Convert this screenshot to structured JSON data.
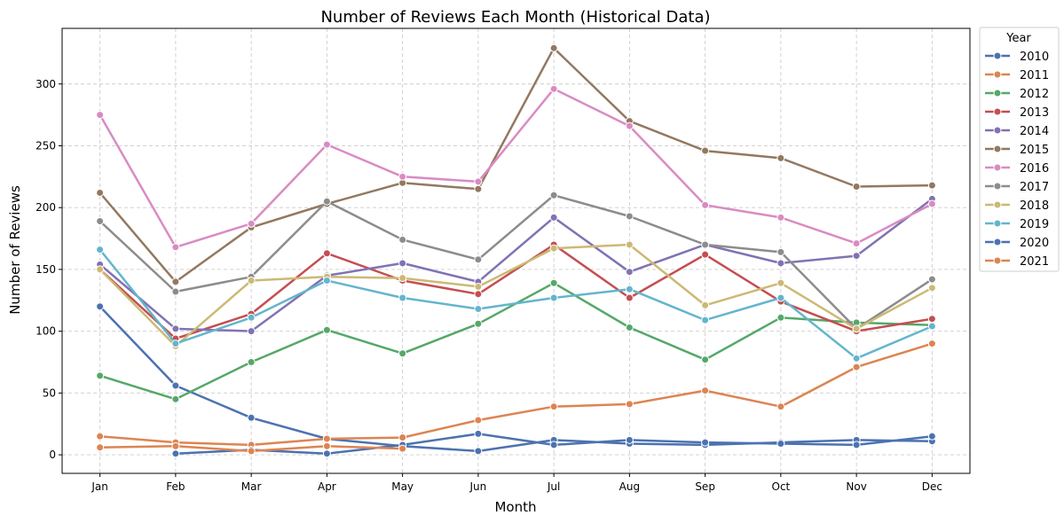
{
  "chart_data": {
    "type": "line",
    "title": "Number of Reviews Each Month (Historical Data)",
    "xlabel": "Month",
    "ylabel": "Number of Reviews",
    "categories": [
      "Jan",
      "Feb",
      "Mar",
      "Apr",
      "May",
      "Jun",
      "Jul",
      "Aug",
      "Sep",
      "Oct",
      "Nov",
      "Dec"
    ],
    "ylim": [
      -15,
      345
    ],
    "yticks": [
      0,
      50,
      100,
      150,
      200,
      250,
      300
    ],
    "grid": true,
    "legend_title": "Year",
    "legend_position": "outside-right",
    "series": [
      {
        "name": "2010",
        "color": "#4c72b0",
        "values": [
          120,
          56,
          30,
          13,
          7,
          3,
          12,
          9,
          8,
          10,
          12,
          11
        ]
      },
      {
        "name": "2011",
        "color": "#dd8452",
        "values": [
          15,
          10,
          8,
          13,
          14,
          28,
          39,
          41,
          52,
          39,
          71,
          90
        ]
      },
      {
        "name": "2012",
        "color": "#55a868",
        "values": [
          64,
          45,
          75,
          101,
          82,
          106,
          139,
          103,
          77,
          111,
          107,
          105
        ]
      },
      {
        "name": "2013",
        "color": "#c44e52",
        "values": [
          150,
          94,
          114,
          163,
          141,
          130,
          170,
          127,
          162,
          124,
          100,
          110
        ]
      },
      {
        "name": "2014",
        "color": "#8172b3",
        "values": [
          154,
          102,
          100,
          145,
          155,
          140,
          192,
          148,
          170,
          155,
          161,
          207
        ]
      },
      {
        "name": "2015",
        "color": "#937860",
        "values": [
          212,
          140,
          184,
          203,
          220,
          215,
          329,
          270,
          246,
          240,
          217,
          218
        ]
      },
      {
        "name": "2016",
        "color": "#da8bc3",
        "values": [
          275,
          168,
          187,
          251,
          225,
          221,
          296,
          266,
          202,
          192,
          171,
          203
        ]
      },
      {
        "name": "2017",
        "color": "#8c8c8c",
        "values": [
          189,
          132,
          144,
          205,
          174,
          158,
          210,
          193,
          170,
          164,
          102,
          142
        ]
      },
      {
        "name": "2018",
        "color": "#ccb974",
        "values": [
          150,
          88,
          141,
          144,
          143,
          136,
          167,
          170,
          121,
          139,
          102,
          135
        ]
      },
      {
        "name": "2019",
        "color": "#64b5cd",
        "values": [
          166,
          90,
          111,
          141,
          127,
          118,
          127,
          134,
          109,
          127,
          78,
          104
        ]
      },
      {
        "name": "2020",
        "color": "#4c72b0",
        "values": [
          null,
          1,
          4,
          1,
          8,
          17,
          8,
          12,
          10,
          9,
          8,
          15
        ]
      },
      {
        "name": "2021",
        "color": "#dd8452",
        "values": [
          6,
          7,
          3,
          7,
          5,
          null,
          null,
          null,
          null,
          null,
          null,
          null
        ]
      }
    ]
  }
}
